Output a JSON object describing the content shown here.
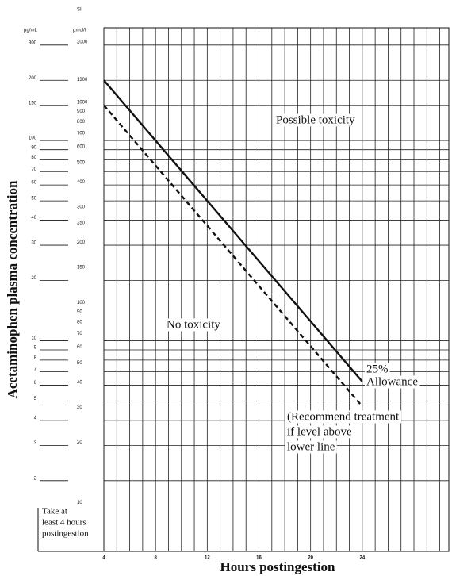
{
  "chart_data": {
    "type": "line",
    "x_label": "Hours postingestion",
    "y_label": "Acetaminophen plasma concentration",
    "y_unit": "µg/mL",
    "y2_title": "SI",
    "y2_unit": "µmol/l",
    "x": [
      4,
      24
    ],
    "series": [
      {
        "values": [
          200,
          6.25
        ],
        "color": "#111111",
        "dash": false
      },
      {
        "values": [
          150,
          4.7
        ],
        "color": "#111111",
        "dash": true
      }
    ],
    "xlim": [
      4,
      30.7
    ],
    "xticks": [
      4,
      8,
      12,
      16,
      20,
      24
    ],
    "x_gridlines": [
      4,
      5,
      6,
      7,
      8,
      9,
      10,
      11,
      12,
      13,
      14,
      15,
      16,
      17,
      18,
      19,
      20,
      21,
      22,
      23,
      24,
      25,
      26,
      27,
      28,
      29,
      30
    ],
    "log_y": true,
    "grid": true,
    "ylim": [
      0.886,
      366
    ],
    "yticks": [
      300,
      200,
      150,
      100,
      90,
      80,
      70,
      60,
      50,
      40,
      30,
      20,
      10,
      9,
      8,
      7,
      6,
      5,
      4,
      3,
      2
    ],
    "y2lim": [
      5.87,
      2423
    ],
    "y2ticks": [
      2000,
      1300,
      1000,
      900,
      800,
      700,
      600,
      500,
      400,
      300,
      250,
      200,
      150,
      100,
      90,
      80,
      70,
      60,
      50,
      40,
      30,
      20,
      10
    ],
    "annotations": [
      {
        "lines": [
          "Possible toxicity"
        ]
      },
      {
        "lines": [
          "No toxicity"
        ]
      },
      {
        "lines": [
          "25%",
          "Allowance"
        ]
      },
      {
        "lines": [
          "(Recommend treatment",
          "if level above",
          "lower line"
        ]
      },
      {
        "lines": [
          "Take at",
          "least 4 hours",
          "postingestion"
        ]
      }
    ]
  }
}
